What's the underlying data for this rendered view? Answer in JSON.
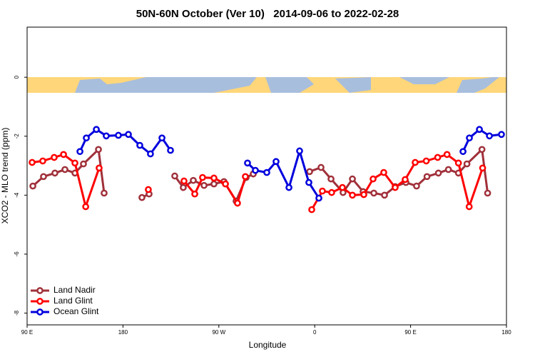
{
  "chart_data": {
    "type": "line",
    "title": "50N-60N October (Ver 10)   2014-09-06 to 2022-02-28",
    "x_label": "Longitude",
    "y_label": "XCO2 - MLO trend (ppm)",
    "xlim": [
      90,
      540
    ],
    "ylim": [
      -8.4,
      1.7
    ],
    "xticks": [
      {
        "value": 90,
        "label": "90 E"
      },
      180,
      {
        "value": 270,
        "label": "90 W"
      },
      {
        "value": 360,
        "label": "0"
      },
      {
        "value": 450,
        "label": "90 E"
      },
      180
    ],
    "yticks": [
      0,
      -2,
      -4,
      -6,
      -8
    ],
    "legend": "bottom-left",
    "series": [
      {
        "name": "Land Nadir",
        "color": "#a0303a",
        "x": [
          95.4,
          105.4,
          116.1,
          125.5,
          134.9,
          142.9,
          157.0,
          162.3,
          null,
          197.8,
          204.5,
          null,
          228.6,
          236.6,
          246.0,
          256.1,
          265.4,
          274.8,
          286.2,
          295.6,
          302.3,
          null,
          355.2,
          365.9,
          375.3,
          386.6,
          395.4,
          405.4,
          415.5,
          425.5,
          435.5,
          445.6,
          455.6,
          465.4,
          476.1,
          485.5,
          494.9,
          502.9,
          517.0,
          522.3
        ],
        "values": [
          -3.69,
          -3.37,
          -3.25,
          -3.13,
          -3.25,
          -2.94,
          -2.45,
          -3.93,
          null,
          -4.08,
          -3.96,
          null,
          -3.35,
          -3.74,
          -3.5,
          -3.67,
          -3.62,
          -3.54,
          -4.2,
          -3.4,
          -3.28,
          null,
          -3.2,
          -3.06,
          -3.45,
          -3.91,
          -3.45,
          -3.88,
          -3.93,
          -4.0,
          -3.71,
          -3.57,
          -3.69,
          -3.37,
          -3.25,
          -3.13,
          -3.25,
          -2.94,
          -2.45,
          -3.93
        ]
      },
      {
        "name": "Land Glint",
        "color": "#ff0000",
        "x": [
          94.7,
          104.7,
          115.4,
          124.2,
          134.9,
          145.0,
          157.6,
          null,
          203.8,
          null,
          237.3,
          247.4,
          254.7,
          265.4,
          276.2,
          287.5,
          294.9,
          null,
          357.2,
          367.2,
          375.9,
          386.0,
          395.4,
          406.1,
          414.8,
          424.8,
          435.5,
          444.9,
          454.3,
          464.7,
          475.4,
          484.2,
          494.9,
          505.0,
          517.6
        ],
        "values": [
          -2.89,
          -2.84,
          -2.72,
          -2.62,
          -2.91,
          -4.39,
          -3.08,
          null,
          -3.81,
          null,
          -3.52,
          -3.96,
          -3.4,
          -3.42,
          -3.62,
          -4.27,
          -3.37,
          null,
          -4.49,
          -3.86,
          -3.91,
          -3.74,
          -4.0,
          -3.98,
          -3.45,
          -3.23,
          -3.74,
          -3.47,
          -2.89,
          -2.84,
          -2.72,
          -2.62,
          -2.91,
          -4.39,
          -3.08
        ]
      },
      {
        "name": "Ocean Glint",
        "color": "#0000dd",
        "x": [
          139.6,
          145.6,
          155.0,
          164.3,
          175.7,
          185.1,
          195.8,
          205.8,
          216.6,
          224.6,
          null,
          296.9,
          304.3,
          315.0,
          323.7,
          335.8,
          345.8,
          354.5,
          363.9,
          null,
          499.2,
          505.2,
          514.6,
          524.0,
          535.3
        ],
        "values": [
          -2.52,
          -2.06,
          -1.77,
          -1.99,
          -1.97,
          -1.94,
          -2.31,
          -2.6,
          -2.06,
          -2.48,
          null,
          -2.91,
          -3.16,
          -3.23,
          -2.86,
          -3.74,
          -2.5,
          -3.57,
          -4.1,
          null,
          -2.52,
          -2.06,
          -1.77,
          -1.99,
          -1.94
        ]
      }
    ]
  }
}
